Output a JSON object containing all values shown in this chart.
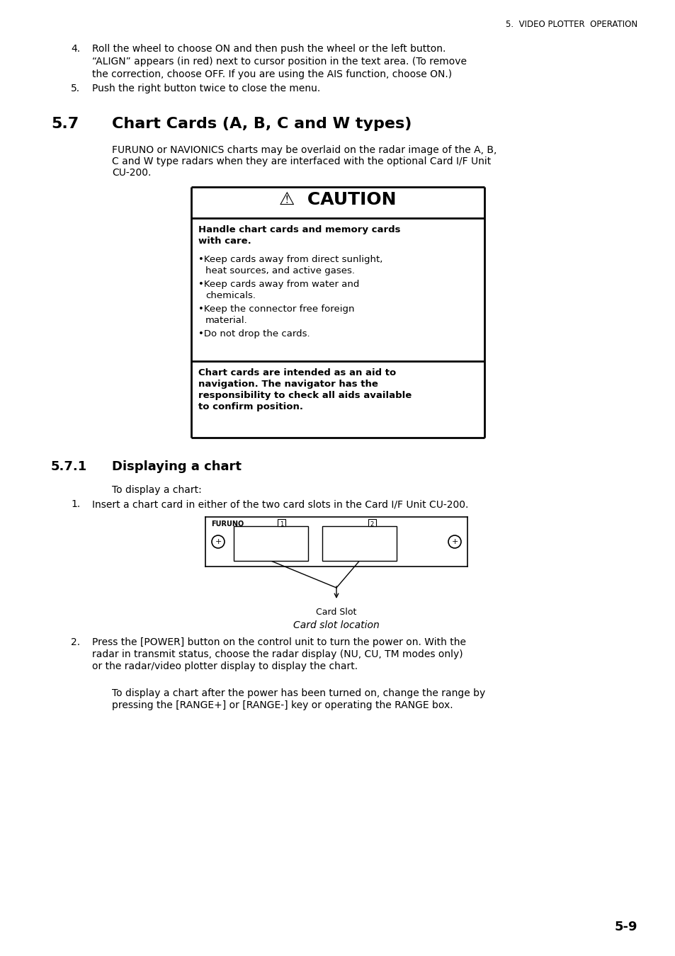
{
  "page_header": "5.  VIDEO PLOTTER  OPERATION",
  "section_number": "5.7",
  "section_title": "Chart Cards (A, B, C and W types)",
  "section_intro_1": "FURUNO or NAVIONICS charts may be overlaid on the radar image of the A, B,",
  "section_intro_2": "C and W type radars when they are interfaced with the optional Card I/F Unit",
  "section_intro_3": "CU-200.",
  "caution_title": "⚠  CAUTION",
  "caution_bold1_1": "Handle chart cards and memory cards",
  "caution_bold1_2": "with care.",
  "caution_bullets": [
    [
      "Keep cards away from direct sunlight,",
      "heat sources, and active gases."
    ],
    [
      "Keep cards away from water and",
      "chemicals."
    ],
    [
      "Keep the connector free foreign",
      "material."
    ],
    [
      "Do not drop the cards."
    ]
  ],
  "caution_bold2_1": "Chart cards are intended as an aid to",
  "caution_bold2_2": "navigation. The navigator has the",
  "caution_bold2_3": "responsibility to check all aids available",
  "caution_bold2_4": "to confirm position.",
  "subsection_number": "5.7.1",
  "subsection_title": "Displaying a chart",
  "sub_intro": "To display a chart:",
  "step1": "Insert a chart card in either of the two card slots in the Card I/F Unit CU-200.",
  "diagram_label": "Card Slot",
  "diagram_caption": "Card slot location",
  "step2_1": "Press the [POWER] button on the control unit to turn the power on. With the",
  "step2_2": "radar in transmit status, choose the radar display (NU, CU, TM modes only)",
  "step2_3": "or the radar/video plotter display to display the chart.",
  "closing_1": "To display a chart after the power has been turned on, change the range by",
  "closing_2": "pressing the [RANGE+] or [RANGE-] key or operating the RANGE box.",
  "page_number": "5-9",
  "item4_1": "Roll the wheel to choose ON and then push the wheel or the left button.",
  "item4_2": "“ALIGN” appears (in red) next to cursor position in the text area. (To remove",
  "item4_3": "the correction, choose OFF. If you are using the AIS function, choose ON.)",
  "item5": "Push the right button twice to close the menu.",
  "bg_color": "#ffffff"
}
